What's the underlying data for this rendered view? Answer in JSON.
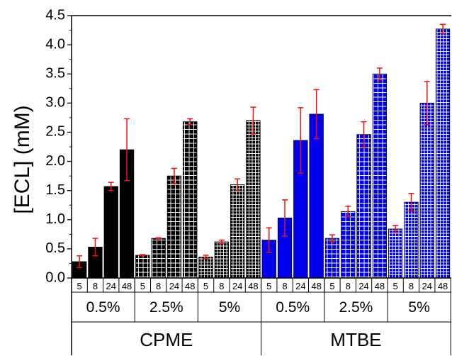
{
  "chart_data": {
    "type": "bar",
    "ylabel": "[ECL] (mM)",
    "xlabel": "",
    "ylim": [
      0,
      4.5
    ],
    "yticks": [
      "0.0",
      "0.5",
      "1.0",
      "1.5",
      "2.0",
      "2.5",
      "3.0",
      "3.5",
      "4.0",
      "4.5"
    ],
    "grid": false,
    "categories": [
      "5",
      "8",
      "24",
      "48"
    ],
    "concentrations": [
      "0.5%",
      "2.5%",
      "5%"
    ],
    "solvents": [
      "CPME",
      "MTBE"
    ],
    "colors": {
      "CPME": "#000000",
      "MTBE": "#0000ee",
      "error_bar": "#ee1111"
    },
    "patterns": {
      "0.5%": "solid",
      "2.5%": "grid-coarse",
      "5%": "grid-fine"
    },
    "groups": [
      {
        "solvent": "CPME",
        "concentration": "0.5%",
        "values": [
          0.28,
          0.53,
          1.57,
          2.2
        ],
        "errors": [
          0.1,
          0.15,
          0.07,
          0.53
        ]
      },
      {
        "solvent": "CPME",
        "concentration": "2.5%",
        "values": [
          0.39,
          0.68,
          1.75,
          2.68
        ],
        "errors": [
          0.01,
          0.01,
          0.13,
          0.05
        ]
      },
      {
        "solvent": "CPME",
        "concentration": "5%",
        "values": [
          0.36,
          0.62,
          1.6,
          2.7
        ],
        "errors": [
          0.03,
          0.03,
          0.1,
          0.23
        ]
      },
      {
        "solvent": "MTBE",
        "concentration": "0.5%",
        "values": [
          0.65,
          1.03,
          2.36,
          2.81
        ],
        "errors": [
          0.21,
          0.31,
          0.56,
          0.42
        ]
      },
      {
        "solvent": "MTBE",
        "concentration": "2.5%",
        "values": [
          0.68,
          1.14,
          2.46,
          3.5
        ],
        "errors": [
          0.06,
          0.09,
          0.22,
          0.1
        ]
      },
      {
        "solvent": "MTBE",
        "concentration": "5%",
        "values": [
          0.84,
          1.3,
          3.0,
          4.27
        ],
        "errors": [
          0.06,
          0.15,
          0.37,
          0.08
        ]
      }
    ]
  }
}
